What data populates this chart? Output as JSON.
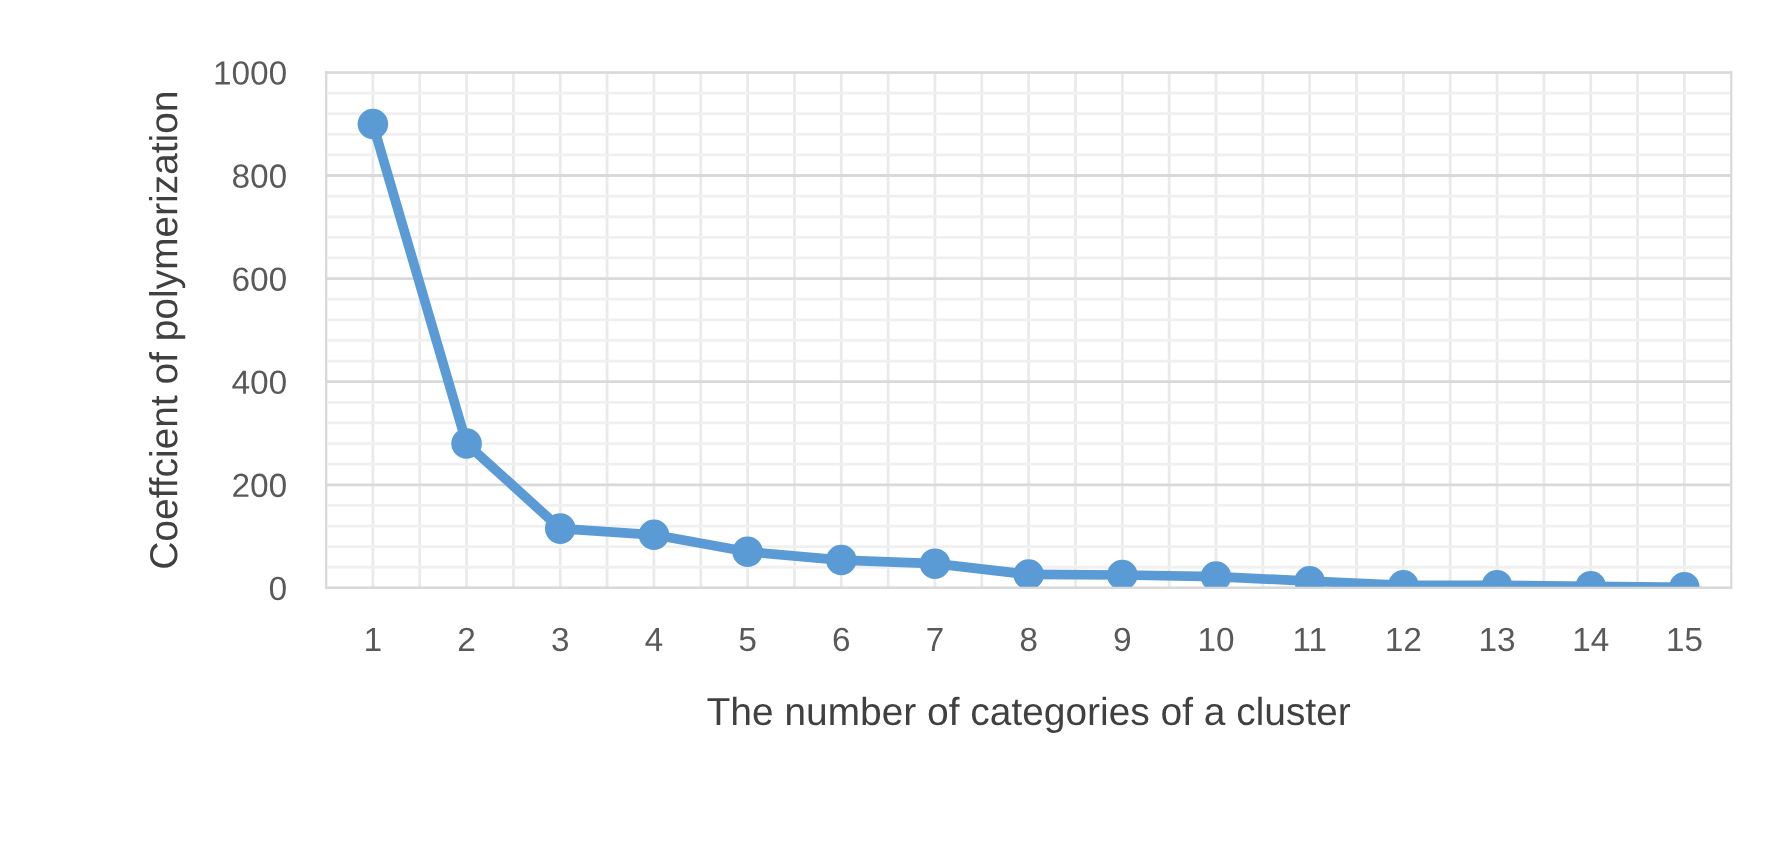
{
  "chart_data": {
    "type": "line",
    "xlabel": "The number of categories of a cluster",
    "ylabel": "Coeffcient of polymerization",
    "categories": [
      "1",
      "2",
      "3",
      "4",
      "5",
      "6",
      "7",
      "8",
      "9",
      "10",
      "11",
      "12",
      "13",
      "14",
      "15"
    ],
    "series": [
      {
        "color": "#5b9bd5",
        "values": [
          900,
          280,
          115,
          103,
          70,
          54,
          47,
          26,
          25,
          22,
          13,
          5,
          5,
          3,
          1
        ]
      }
    ],
    "ylim": [
      0,
      1000
    ],
    "yticks": [
      0,
      200,
      400,
      600,
      800,
      1000
    ],
    "grid": true,
    "marker": "circle",
    "line_style": "solid"
  }
}
